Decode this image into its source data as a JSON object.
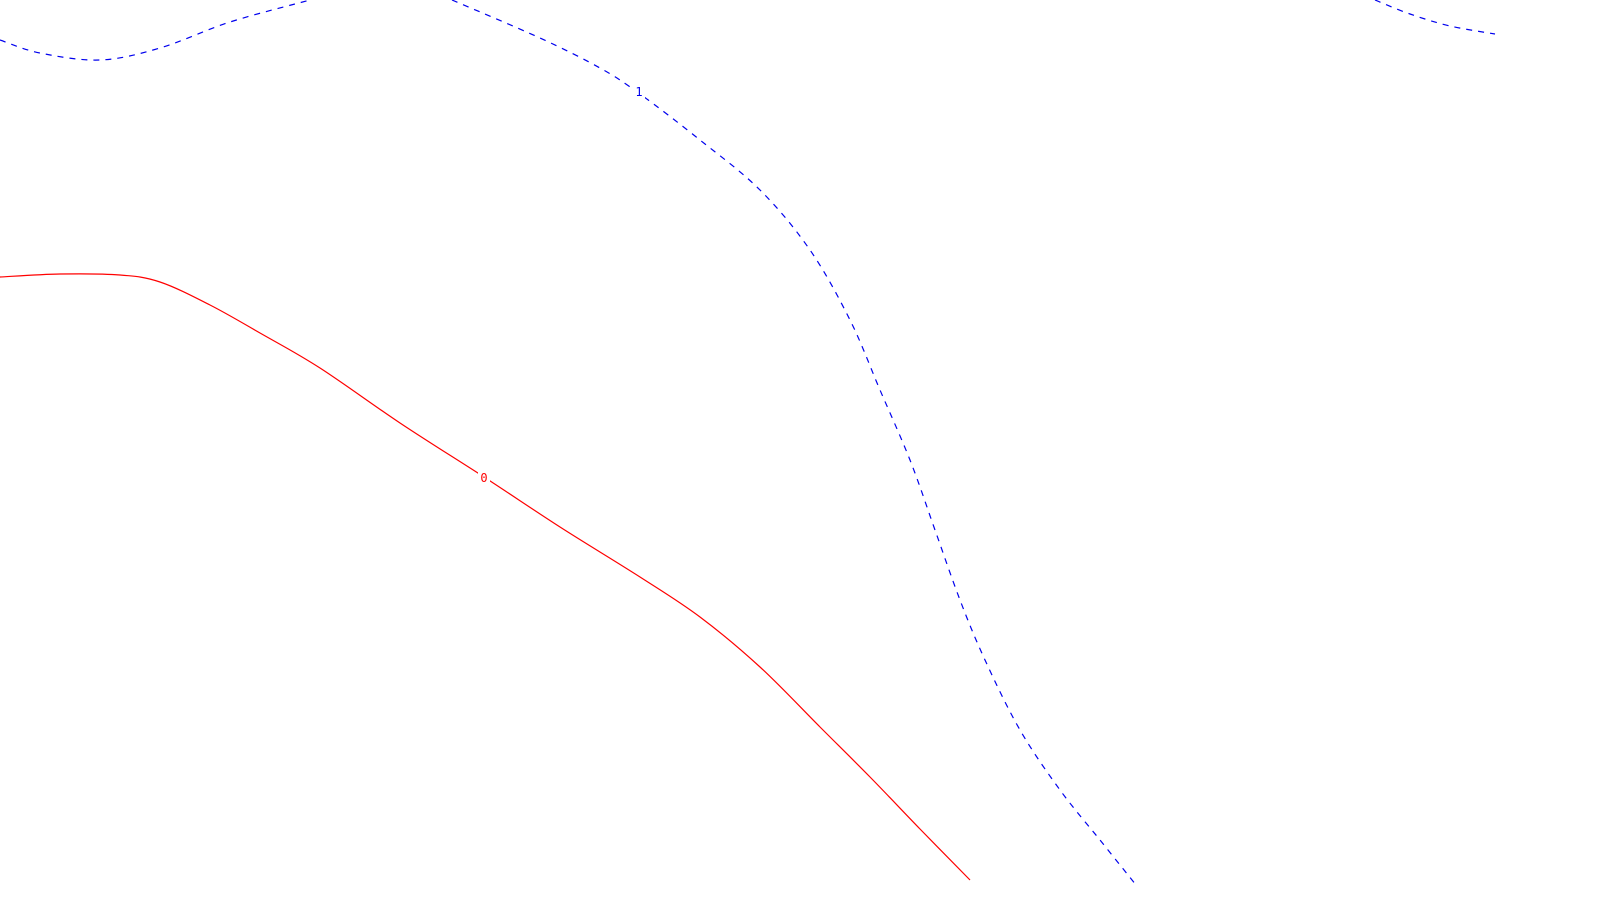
{
  "chart_data": {
    "type": "line",
    "title": "",
    "xlabel": "",
    "ylabel": "",
    "grid": false,
    "legend": "none",
    "series": [
      {
        "level_label": "1",
        "color": "#0000ee",
        "dash": "dashed",
        "segments": [
          {
            "points": [
              [
                0,
                40
              ],
              [
                40,
                53
              ],
              [
                100,
                60
              ],
              [
                160,
                48
              ],
              [
                230,
                22
              ],
              [
                310,
                0
              ]
            ]
          },
          {
            "points": [
              [
                452,
                0
              ],
              [
                540,
                38
              ],
              [
                600,
                68
              ],
              [
                640,
                94
              ],
              [
                700,
                140
              ],
              [
                760,
                190
              ],
              [
                810,
                250
              ],
              [
                850,
                320
              ],
              [
                880,
                390
              ],
              [
                910,
                460
              ],
              [
                935,
                530
              ],
              [
                960,
                600
              ],
              [
                985,
                660
              ],
              [
                1020,
                730
              ],
              [
                1060,
                790
              ],
              [
                1100,
                840
              ],
              [
                1136,
                885
              ]
            ]
          },
          {
            "points": [
              [
                1375,
                0
              ],
              [
                1410,
                14
              ],
              [
                1450,
                26
              ],
              [
                1495,
                34
              ]
            ]
          }
        ]
      },
      {
        "level_label": "0",
        "color": "#ff0000",
        "dash": "solid",
        "segments": [
          {
            "points": [
              [
                0,
                277
              ],
              [
                60,
                274
              ],
              [
                120,
                275
              ],
              [
                160,
                282
              ],
              [
                210,
                305
              ],
              [
                260,
                333
              ],
              [
                320,
                368
              ],
              [
                400,
                423
              ],
              [
                484,
                477
              ],
              [
                560,
                527
              ],
              [
                640,
                577
              ],
              [
                700,
                617
              ],
              [
                760,
                667
              ],
              [
                820,
                727
              ],
              [
                870,
                777
              ],
              [
                920,
                829
              ],
              [
                970,
                880
              ]
            ]
          }
        ]
      }
    ]
  }
}
